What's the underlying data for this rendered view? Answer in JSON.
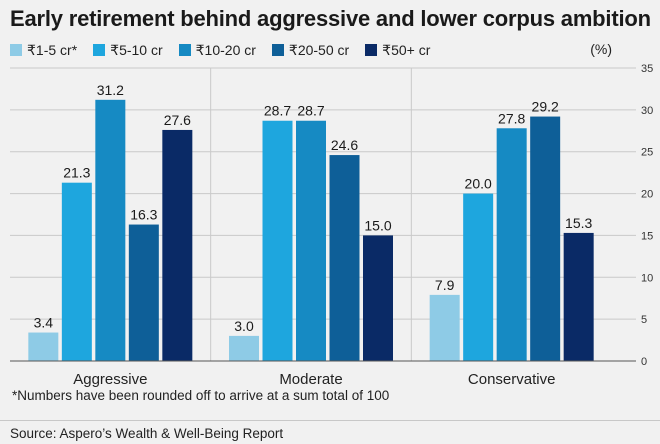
{
  "title": "Early retirement behind aggressive and lower corpus ambition",
  "unit_label": "(%)",
  "note": "*Numbers have been rounded off to arrive at a sum total of 100",
  "source": "Source: Aspero’s Wealth & Well-Being Report",
  "chart_data": {
    "type": "bar",
    "title": "Early retirement behind aggressive and lower corpus ambition",
    "xlabel": "",
    "ylabel": "(%)",
    "categories": [
      "Aggressive",
      "Moderate",
      "Conservative"
    ],
    "series": [
      {
        "name": "₹1-5 cr*",
        "color": "#8ecbe6",
        "values": [
          3.4,
          3.0,
          7.9
        ]
      },
      {
        "name": "₹5-10 cr",
        "color": "#1ea6de",
        "values": [
          21.3,
          28.7,
          20.0
        ]
      },
      {
        "name": "₹10-20 cr",
        "color": "#168ac3",
        "values": [
          31.2,
          28.7,
          27.8
        ]
      },
      {
        "name": "₹20-50 cr",
        "color": "#0e5f98",
        "values": [
          16.3,
          24.6,
          29.2
        ]
      },
      {
        "name": "₹50+ cr",
        "color": "#0a2a66",
        "values": [
          27.6,
          15.0,
          15.3
        ]
      }
    ],
    "ylim": [
      0,
      35
    ],
    "yticks": [
      0,
      5,
      10,
      15,
      20,
      25,
      30,
      35
    ],
    "y_axis_side": "right",
    "grid": true,
    "legend_position": "top-left"
  }
}
